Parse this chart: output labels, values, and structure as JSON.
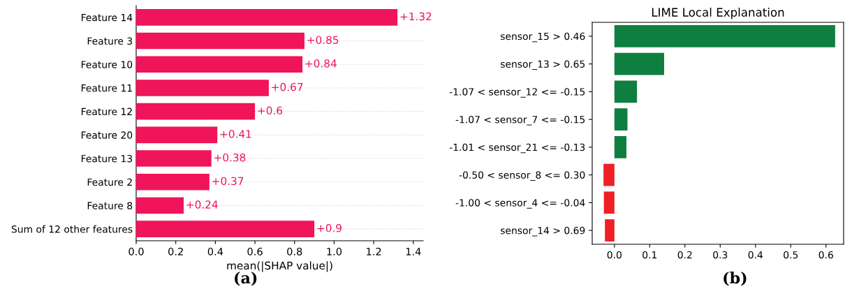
{
  "chart_data": [
    {
      "type": "bar",
      "orientation": "horizontal",
      "xlabel": "mean(|SHAP value|)",
      "categories": [
        "Feature 14",
        "Feature 3",
        "Feature 10",
        "Feature 11",
        "Feature 12",
        "Feature 20",
        "Feature 13",
        "Feature 2",
        "Feature 8",
        "Sum of 12 other features"
      ],
      "values": [
        1.32,
        0.85,
        0.84,
        0.67,
        0.6,
        0.41,
        0.38,
        0.37,
        0.24,
        0.9
      ],
      "value_labels": [
        "+1.32",
        "+0.85",
        "+0.84",
        "+0.67",
        "+0.6",
        "+0.41",
        "+0.38",
        "+0.37",
        "+0.24",
        "+0.9"
      ],
      "color": "#f0145a",
      "xlim": [
        0,
        1.45
      ],
      "xticks": [
        {
          "value": 0,
          "label": "0.0"
        },
        {
          "value": 0.2,
          "label": "0.2"
        },
        {
          "value": 0.4,
          "label": "0.4"
        },
        {
          "value": 0.6,
          "label": "0.6"
        },
        {
          "value": 0.8,
          "label": "0.8"
        },
        {
          "value": 1.0,
          "label": "1.0"
        },
        {
          "value": 1.2,
          "label": "1.2"
        },
        {
          "value": 1.4,
          "label": "1.4"
        }
      ],
      "grid": "y",
      "annotations": [
        "(a)"
      ]
    },
    {
      "type": "bar",
      "orientation": "horizontal",
      "title": "LIME Local Explanation",
      "categories": [
        "sensor_15 > 0.46",
        "sensor_13 > 0.65",
        "-1.07 < sensor_12 <= -0.15",
        "-1.07 < sensor_7 <= -0.15",
        "-1.01 < sensor_21 <= -0.13",
        "-0.50 < sensor_8 <= 0.30",
        "-1.00 < sensor_4 <= -0.04",
        "sensor_14 > 0.69"
      ],
      "values": [
        0.626,
        0.141,
        0.064,
        0.037,
        0.034,
        -0.031,
        -0.03,
        -0.027
      ],
      "colors": [
        "#0f7f3f",
        "#0f7f3f",
        "#0f7f3f",
        "#0f7f3f",
        "#0f7f3f",
        "#ee2026",
        "#ee2026",
        "#ee2026"
      ],
      "xlim": [
        -0.063,
        0.65
      ],
      "xticks": [
        {
          "value": 0,
          "label": "0.0"
        },
        {
          "value": 0.1,
          "label": "0.1"
        },
        {
          "value": 0.2,
          "label": "0.2"
        },
        {
          "value": 0.3,
          "label": "0.3"
        },
        {
          "value": 0.4,
          "label": "0.4"
        },
        {
          "value": 0.5,
          "label": "0.5"
        },
        {
          "value": 0.6,
          "label": "0.6"
        }
      ],
      "annotations": [
        "(b)"
      ]
    }
  ]
}
